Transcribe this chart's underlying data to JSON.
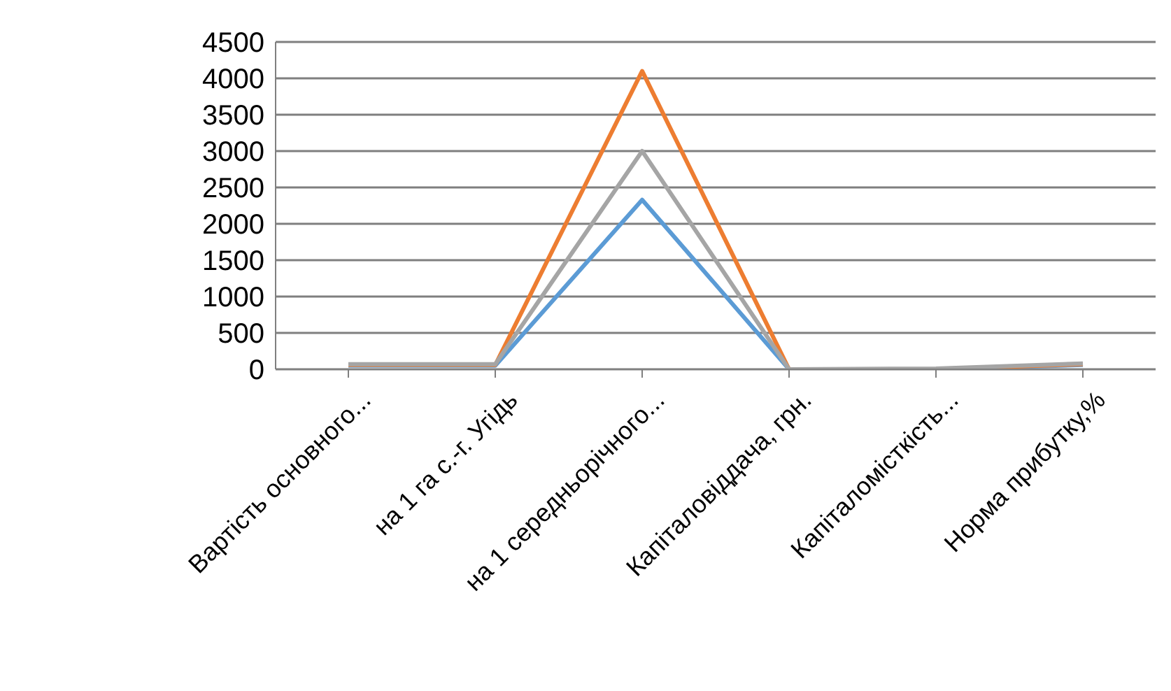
{
  "chart_data": {
    "type": "line",
    "categories": [
      "Вартість основного...",
      "на 1 га с.-г. Угідь",
      "на 1 середньорічного...",
      "Капіталовіддача, грн.",
      "Капіталомісткість...",
      "Норма прибутку,%"
    ],
    "series": [
      {
        "color": "#5b9bd5",
        "values": [
          50,
          50,
          2330,
          0,
          0,
          60
        ]
      },
      {
        "color": "#ed7d31",
        "values": [
          60,
          60,
          4100,
          0,
          0,
          70
        ]
      },
      {
        "color": "#a5a5a5",
        "values": [
          70,
          70,
          3000,
          0,
          10,
          80
        ]
      }
    ],
    "ylim": [
      0,
      4500
    ],
    "yticks": [
      0,
      500,
      1000,
      1500,
      2000,
      2500,
      3000,
      3500,
      4000,
      4500
    ],
    "grid": "y",
    "legend": false,
    "marker": "none",
    "line_style": "solid"
  }
}
